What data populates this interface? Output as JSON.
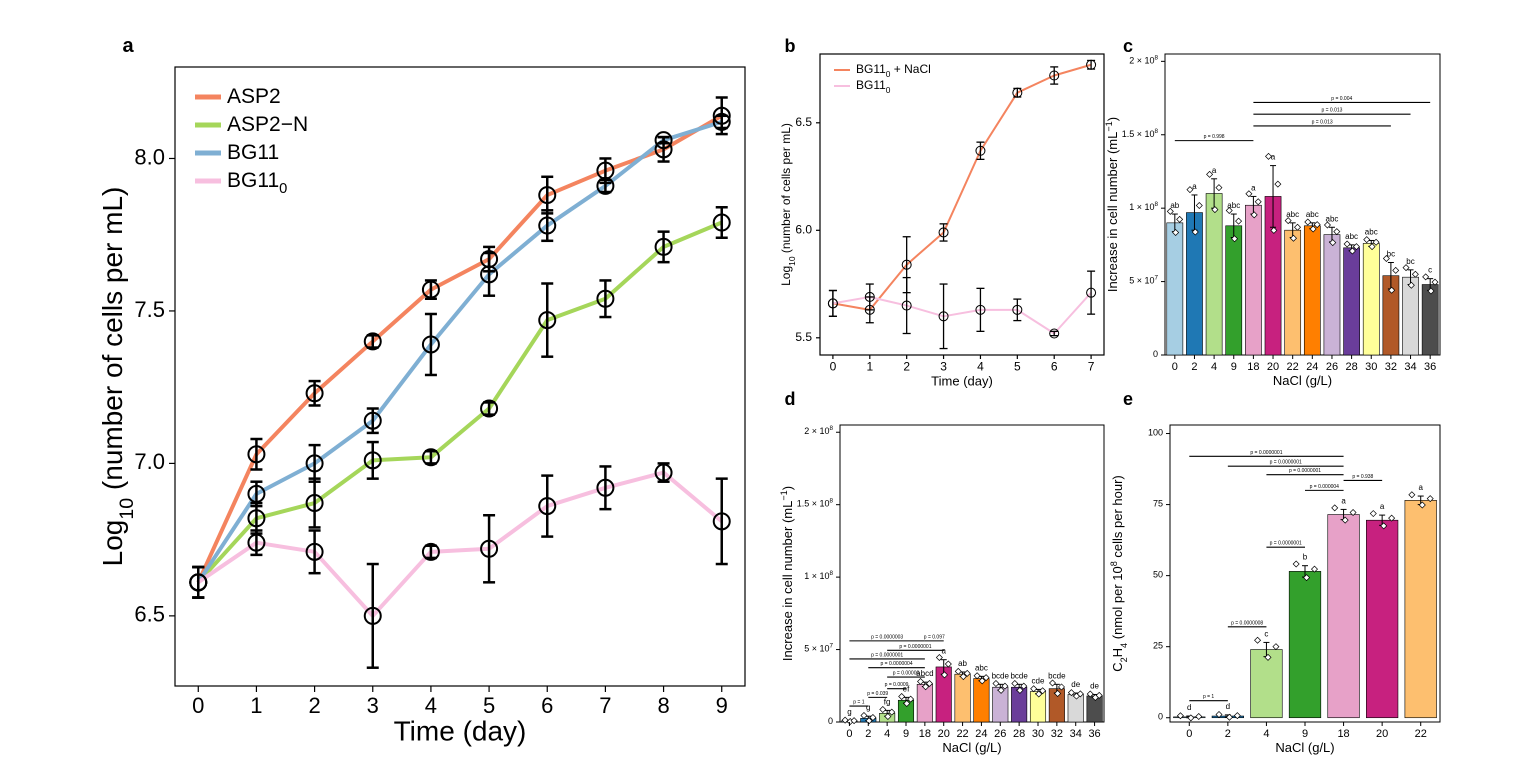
{
  "figure": {
    "panels": [
      "a",
      "b",
      "c",
      "d",
      "e"
    ]
  },
  "chart_data": [
    {
      "panel": "a",
      "type": "line",
      "xlabel": "Time (day)",
      "ylabel": "Log10 (number of cells per mL)",
      "ylabel_main": "Log",
      "ylabel_sub": "10",
      "ylabel_rest": " (number of cells per mL)",
      "x": [
        0,
        1,
        2,
        3,
        4,
        5,
        6,
        7,
        8,
        9
      ],
      "xlim": [
        -0.4,
        9.4
      ],
      "ylim": [
        6.27,
        8.3
      ],
      "yticks": [
        6.5,
        7.0,
        7.5,
        8.0
      ],
      "ytick_labels": [
        "6.5",
        "7.0",
        "7.5",
        "8.0"
      ],
      "legend_position": "top-left",
      "series": [
        {
          "name": "ASP2",
          "name_main": "ASP2",
          "name_sub": "",
          "color": "#f4845f",
          "values": [
            6.61,
            7.03,
            7.23,
            7.4,
            7.57,
            7.67,
            7.88,
            7.96,
            8.03,
            8.14
          ],
          "err": [
            0.05,
            0.05,
            0.04,
            0.02,
            0.03,
            0.04,
            0.06,
            0.04,
            0.04,
            0.06
          ]
        },
        {
          "name": "ASP2−N",
          "name_main": "ASP2−N",
          "name_sub": "",
          "color": "#a5d65a",
          "values": [
            6.61,
            6.82,
            6.87,
            7.01,
            7.02,
            7.18,
            7.47,
            7.54,
            7.71,
            7.79
          ],
          "err": [
            0.05,
            0.05,
            0.08,
            0.06,
            0.02,
            0.02,
            0.12,
            0.06,
            0.05,
            0.05
          ]
        },
        {
          "name": "BG11",
          "name_main": "BG11",
          "name_sub": "",
          "color": "#7fafd3",
          "values": [
            6.61,
            6.9,
            7.0,
            7.14,
            7.39,
            7.62,
            7.78,
            7.91,
            8.06,
            8.12
          ],
          "err": [
            0.05,
            0.04,
            0.06,
            0.04,
            0.1,
            0.07,
            0.05,
            0.02,
            0.01,
            0.02
          ]
        },
        {
          "name": "BG110",
          "name_main": "BG11",
          "name_sub": "0",
          "color": "#f7bfdf",
          "values": [
            6.61,
            6.74,
            6.71,
            6.5,
            6.71,
            6.72,
            6.86,
            6.92,
            6.97,
            6.81
          ],
          "err": [
            0.05,
            0.04,
            0.07,
            0.17,
            0.02,
            0.11,
            0.1,
            0.07,
            0.03,
            0.14
          ]
        }
      ]
    },
    {
      "panel": "b",
      "type": "line",
      "xlabel": "Time (day)",
      "ylabel": "Log10 (number of cells per mL)",
      "ylabel_main": "Log",
      "ylabel_sub": "10",
      "ylabel_rest": " (number of cells per mL)",
      "x": [
        0,
        1,
        2,
        3,
        4,
        5,
        6,
        7
      ],
      "xlim": [
        -0.35,
        7.35
      ],
      "ylim": [
        5.42,
        6.82
      ],
      "yticks": [
        5.5,
        6.0,
        6.5
      ],
      "ytick_labels": [
        "5.5",
        "6.0",
        "6.5"
      ],
      "legend_position": "top-left",
      "series": [
        {
          "name": "BG110 + NaCl",
          "name_main": "BG11",
          "name_sub": "0",
          "name_rest": " + NaCl",
          "color": "#f4845f",
          "values": [
            5.66,
            5.63,
            5.84,
            5.99,
            6.37,
            6.64,
            6.72,
            6.77
          ],
          "err": [
            0.06,
            0.06,
            0.13,
            0.04,
            0.04,
            0.02,
            0.04,
            0.02
          ]
        },
        {
          "name": "BG110",
          "name_main": "BG11",
          "name_sub": "0",
          "name_rest": "",
          "color": "#f7bfdf",
          "values": [
            5.66,
            5.69,
            5.65,
            5.6,
            5.63,
            5.63,
            5.52,
            5.71
          ],
          "err": [
            0.06,
            0.06,
            0.13,
            0.15,
            0.1,
            0.05,
            0.01,
            0.1
          ]
        }
      ]
    },
    {
      "panel": "c",
      "type": "bar",
      "xlabel": "NaCl (g/L)",
      "ylabel": "Increase in cell number (mL−1)",
      "ylabel_main": "Increase in cell number (mL",
      "ylabel_sup": "−1",
      "ylabel_rest": ")",
      "categories": [
        "0",
        "2",
        "4",
        "9",
        "18",
        "20",
        "22",
        "24",
        "26",
        "28",
        "30",
        "32",
        "34",
        "36"
      ],
      "values": [
        90000000.0,
        97000000.0,
        110000000.0,
        88000000.0,
        102000000.0,
        108000000.0,
        85000000.0,
        88000000.0,
        82000000.0,
        73000000.0,
        76000000.0,
        54000000.0,
        53000000.0,
        48000000.0
      ],
      "err": [
        6000000.0,
        12000000.0,
        10000000.0,
        8000000.0,
        6000000.0,
        21000000.0,
        5000000.0,
        2000000.0,
        5000000.0,
        2000000.0,
        2000000.0,
        9000000.0,
        5000000.0,
        4000000.0
      ],
      "colors": [
        "#a6cee3",
        "#1f78b4",
        "#b2df8a",
        "#33a02c",
        "#e7a1c8",
        "#c7217f",
        "#fdbf6f",
        "#ff7f00",
        "#cab2d6",
        "#6a3d9a",
        "#ffff99",
        "#b15928",
        "#d9d9d9",
        "#4d4d4d"
      ],
      "letters": [
        "ab",
        "a",
        "a",
        "abc",
        "a",
        "a",
        "abc",
        "abc",
        "abc",
        "abc",
        "abc",
        "bc",
        "bc",
        "c"
      ],
      "ylim": [
        0,
        205000000.0
      ],
      "yticks": [
        0,
        50000000.0,
        100000000.0,
        150000000.0,
        200000000.0
      ],
      "ytick_labels": [
        {
          "main": "0",
          "sup": ""
        },
        {
          "main": "5 × 10",
          "sup": "7"
        },
        {
          "main": "1 × 10",
          "sup": "8"
        },
        {
          "main": "1.5 × 10",
          "sup": "8"
        },
        {
          "main": "2 × 10",
          "sup": "8"
        }
      ],
      "brackets": [
        {
          "from": 0,
          "to": 4,
          "y": 146000000.0,
          "label": "p = 0.998"
        },
        {
          "from": 4,
          "to": 13,
          "y": 172000000.0,
          "label": "p = 0.004"
        },
        {
          "from": 4,
          "to": 12,
          "y": 164000000.0,
          "label": "p = 0.013"
        },
        {
          "from": 4,
          "to": 11,
          "y": 156000000.0,
          "label": "p = 0.013"
        }
      ]
    },
    {
      "panel": "d",
      "type": "bar",
      "xlabel": "NaCl (g/L)",
      "ylabel": "Increase in cell number (mL−1)",
      "ylabel_main": "Increase in cell number (mL",
      "ylabel_sup": "−1",
      "ylabel_rest": ")",
      "categories": [
        "0",
        "2",
        "4",
        "9",
        "18",
        "20",
        "22",
        "24",
        "26",
        "28",
        "30",
        "32",
        "34",
        "36"
      ],
      "values": [
        800000.0,
        2500000.0,
        6000000.0,
        15000000.0,
        26000000.0,
        38000000.0,
        33000000.0,
        30000000.0,
        24000000.0,
        24000000.0,
        21000000.0,
        23000000.0,
        19000000.0,
        18000000.0
      ],
      "err": [
        400000.0,
        1500000.0,
        2000000.0,
        2000000.0,
        1500000.0,
        5000000.0,
        1500000.0,
        1500000.0,
        2000000.0,
        2000000.0,
        1500000.0,
        3000000.0,
        1000000.0,
        1000000.0
      ],
      "colors": [
        "#a6cee3",
        "#1f78b4",
        "#b2df8a",
        "#33a02c",
        "#e7a1c8",
        "#c7217f",
        "#fdbf6f",
        "#ff7f00",
        "#cab2d6",
        "#6a3d9a",
        "#ffff99",
        "#b15928",
        "#d9d9d9",
        "#4d4d4d"
      ],
      "letters": [
        "g",
        "g",
        "fg",
        "ef",
        "abcd",
        "a",
        "ab",
        "abc",
        "bcde",
        "bcde",
        "cde",
        "bcde",
        "de",
        "de"
      ],
      "ylim": [
        0,
        205000000.0
      ],
      "yticks": [
        0,
        50000000.0,
        100000000.0,
        150000000.0,
        200000000.0
      ],
      "ytick_labels": [
        {
          "main": "0",
          "sup": ""
        },
        {
          "main": "5 × 10",
          "sup": "7"
        },
        {
          "main": "1 × 10",
          "sup": "8"
        },
        {
          "main": "1.5 × 10",
          "sup": "8"
        },
        {
          "main": "2 × 10",
          "sup": "8"
        }
      ],
      "brackets": [
        {
          "from": 0,
          "to": 1,
          "y": 11000000.0,
          "label": "p = 1"
        },
        {
          "from": 1,
          "to": 2,
          "y": 17000000.0,
          "label": "p = 0.039"
        },
        {
          "from": 2,
          "to": 3,
          "y": 23000000.0,
          "label": "p = 0.0009"
        },
        {
          "from": 2,
          "to": 4,
          "y": 31000000.0,
          "label": "p = 0.00000"
        },
        {
          "from": 1,
          "to": 4,
          "y": 37500000.0,
          "label": "p = 0.0000004"
        },
        {
          "from": 0,
          "to": 4,
          "y": 43500000.0,
          "label": "p = 0.0000001"
        },
        {
          "from": 2,
          "to": 5,
          "y": 49500000.0,
          "label": "p = 0.0000001"
        },
        {
          "from": 0,
          "to": 4,
          "y": 56000000.0,
          "label": "p = 0.0000003"
        },
        {
          "from": 4,
          "to": 5,
          "y": 56000000.0,
          "label": "p = 0.097"
        }
      ]
    },
    {
      "panel": "e",
      "type": "bar",
      "xlabel": "NaCl (g/L)",
      "ylabel": "C2H4 (nmol per 108 cells per hour)",
      "ylabel_parts": [
        {
          "t": "C",
          "k": "n"
        },
        {
          "t": "2",
          "k": "sub"
        },
        {
          "t": "H",
          "k": "n"
        },
        {
          "t": "4",
          "k": "sub"
        },
        {
          "t": " (nmol per 10",
          "k": "n"
        },
        {
          "t": "8",
          "k": "sup"
        },
        {
          "t": " cells per hour)",
          "k": "n"
        }
      ],
      "categories": [
        "0",
        "2",
        "4",
        "9",
        "18",
        "20",
        "22"
      ],
      "values": [
        0.3,
        0.6,
        24,
        51.5,
        71.5,
        69.5,
        76.5
      ],
      "err": [
        0.3,
        0.4,
        2.5,
        2,
        1.8,
        1.8,
        1.5
      ],
      "colors": [
        "#a6cee3",
        "#1f78b4",
        "#b2df8a",
        "#33a02c",
        "#e7a1c8",
        "#c7217f",
        "#fdbf6f"
      ],
      "letters": [
        "d",
        "d",
        "c",
        "b",
        "a",
        "a",
        "a"
      ],
      "ylim": [
        -1.5,
        103
      ],
      "yticks": [
        0,
        25,
        50,
        75,
        100
      ],
      "ytick_labels": [
        {
          "main": "0",
          "sup": ""
        },
        {
          "main": "25",
          "sup": ""
        },
        {
          "main": "50",
          "sup": ""
        },
        {
          "main": "75",
          "sup": ""
        },
        {
          "main": "100",
          "sup": ""
        }
      ],
      "brackets": [
        {
          "from": 0,
          "to": 1,
          "y": 6,
          "label": "p = 1"
        },
        {
          "from": 1,
          "to": 2,
          "y": 32,
          "label": "p = 0.0000008"
        },
        {
          "from": 2,
          "to": 3,
          "y": 60,
          "label": "p = 0.0000001"
        },
        {
          "from": 3,
          "to": 4,
          "y": 80,
          "label": "p = 0.000004"
        },
        {
          "from": 4,
          "to": 5,
          "y": 83.5,
          "label": "p = 0.938"
        },
        {
          "from": 2,
          "to": 4,
          "y": 85.5,
          "label": "p = 0.0000001"
        },
        {
          "from": 1,
          "to": 4,
          "y": 88.5,
          "label": "p = 0.0000001"
        },
        {
          "from": 0,
          "to": 4,
          "y": 92,
          "label": "p = 0.0000001"
        }
      ]
    }
  ]
}
